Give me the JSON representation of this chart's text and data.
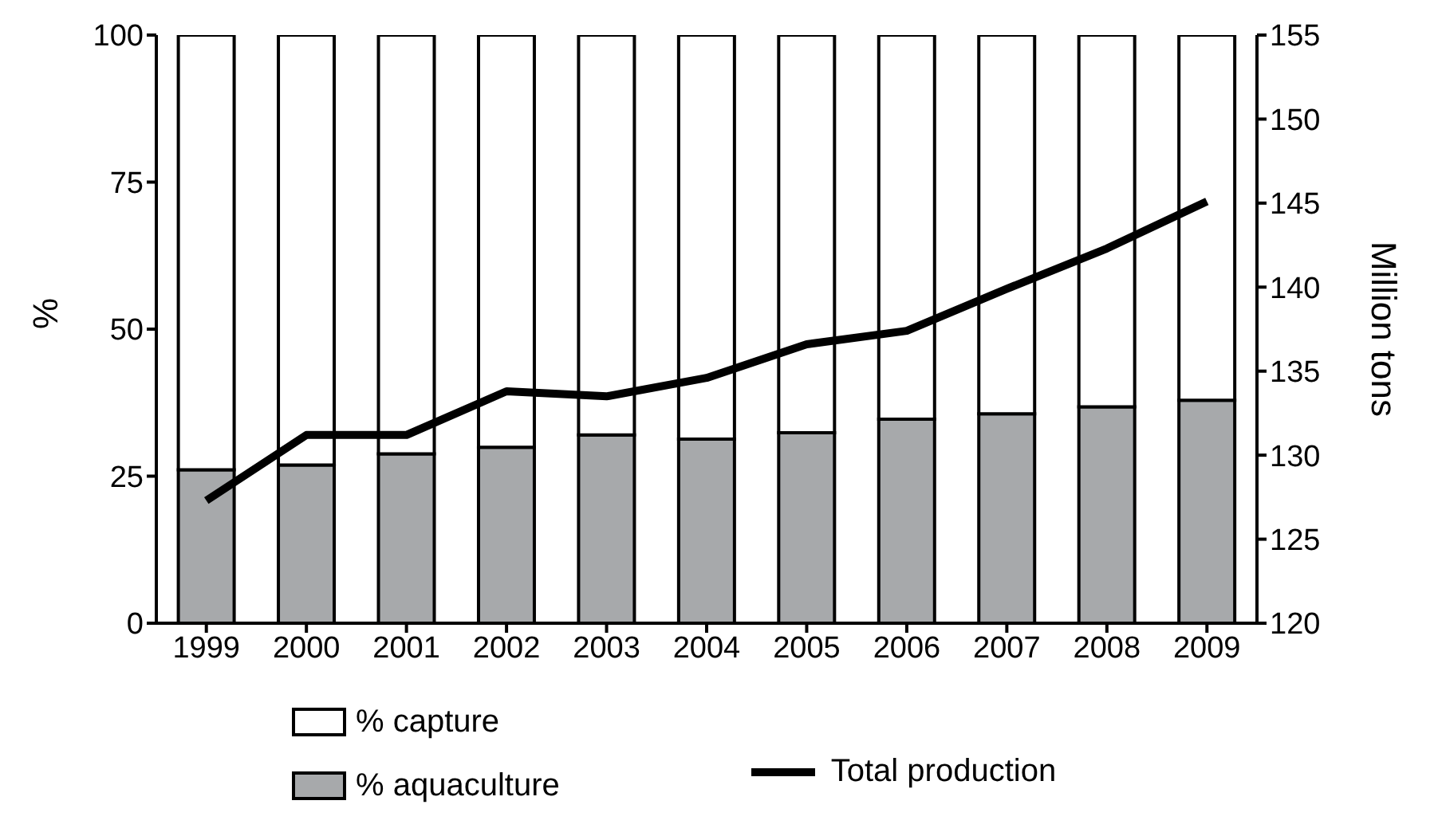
{
  "chart_data": {
    "type": "bar",
    "stacked": true,
    "categories": [
      "1999",
      "2000",
      "2001",
      "2002",
      "2003",
      "2004",
      "2005",
      "2006",
      "2007",
      "2008",
      "2009"
    ],
    "series": [
      {
        "name": "% aquaculture",
        "color": "#a7a9ab",
        "values": [
          26.1,
          26.9,
          28.8,
          29.9,
          32.0,
          31.3,
          32.4,
          34.7,
          35.6,
          36.8,
          37.9
        ]
      },
      {
        "name": "% capture",
        "color": "#ffffff",
        "values": [
          73.9,
          73.1,
          71.2,
          70.1,
          68.0,
          68.7,
          67.6,
          65.3,
          64.4,
          63.2,
          62.1
        ]
      },
      {
        "name": "Total production",
        "type": "line",
        "axis": "y2",
        "color": "#000000",
        "values": [
          127.3,
          131.2,
          131.2,
          133.8,
          133.5,
          134.6,
          136.6,
          137.4,
          139.9,
          142.3,
          145.1
        ]
      }
    ],
    "ylabel": "%",
    "y2label": "Million tons",
    "ylim": [
      0,
      100
    ],
    "yticks": [
      0,
      25,
      50,
      75,
      100
    ],
    "y2lim": [
      120,
      155
    ],
    "y2ticks": [
      120,
      125,
      130,
      135,
      140,
      145,
      150,
      155
    ],
    "legend": "bottom",
    "marker": "none",
    "line_style": "solid"
  }
}
